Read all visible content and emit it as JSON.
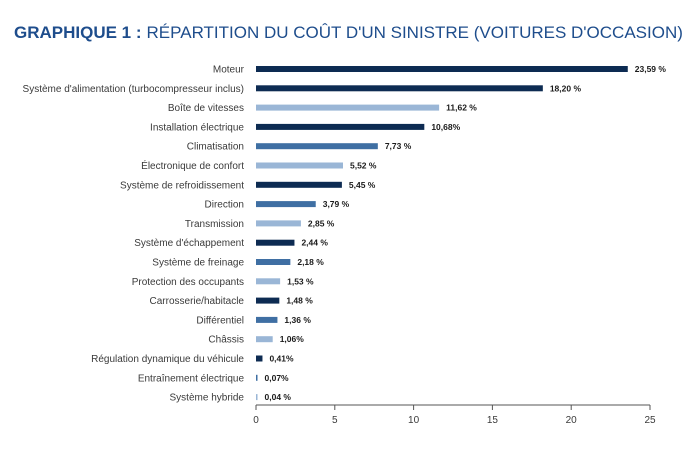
{
  "chart_data": {
    "type": "bar",
    "orientation": "horizontal",
    "title_prefix": "GRAPHIQUE 1 :",
    "title": "RÉPARTITION DU COÛT D'UN SINISTRE  (VOITURES D'OCCASION)",
    "categories": [
      "Moteur",
      "Système d'alimentation (turbocompresseur inclus)",
      "Boîte de vitesses",
      "Installation électrique",
      "Climatisation",
      "Électronique de confort",
      "Système de refroidissement",
      "Direction",
      "Transmission",
      "Système d'échappement",
      "Système de freinage",
      "Protection des occupants",
      "Carrosserie/habitacle",
      "Différentiel",
      "Châssis",
      "Régulation dynamique du véhicule",
      "Entraînement électrique",
      "Système hybride"
    ],
    "values": [
      23.59,
      18.2,
      11.62,
      10.68,
      7.73,
      5.52,
      5.45,
      3.79,
      2.85,
      2.44,
      2.18,
      1.53,
      1.48,
      1.36,
      1.06,
      0.41,
      0.07,
      0.04
    ],
    "value_labels": [
      "23,59 %",
      "18,20 %",
      "11,62 %",
      "10,68%",
      "7,73 %",
      "5,52 %",
      "5,45 %",
      "3,79 %",
      "2,85 %",
      "2,44 %",
      "2,18 %",
      "1,53 %",
      "1,48 %",
      "1,36 %",
      "1,06%",
      "0,41%",
      "0,07%",
      "0,04 %"
    ],
    "bar_colors": [
      "#0d2b52",
      "#0d2b52",
      "#9ab6d6",
      "#0d2b52",
      "#3f6fa3",
      "#9ab6d6",
      "#0d2b52",
      "#3f6fa3",
      "#9ab6d6",
      "#0d2b52",
      "#3f6fa3",
      "#9ab6d6",
      "#0d2b52",
      "#3f6fa3",
      "#9ab6d6",
      "#0d2b52",
      "#3f6fa3",
      "#9ab6d6"
    ],
    "xlim": [
      0,
      25
    ],
    "xticks": [
      0,
      5,
      10,
      15,
      20,
      25
    ],
    "xlabel": "",
    "ylabel": "",
    "grid": false,
    "legend": "none"
  }
}
